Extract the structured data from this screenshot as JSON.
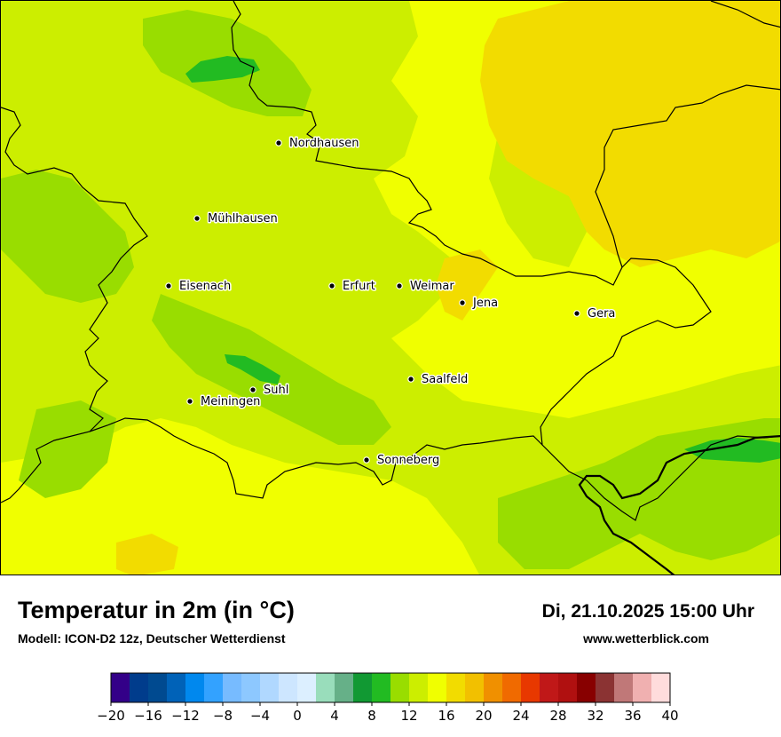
{
  "map": {
    "cities": [
      {
        "id": "nordhausen",
        "name": "Nordhausen"
      },
      {
        "id": "muehlhausen",
        "name": "Mühlhausen"
      },
      {
        "id": "eisenach",
        "name": "Eisenach"
      },
      {
        "id": "erfurt",
        "name": "Erfurt"
      },
      {
        "id": "weimar",
        "name": "Weimar"
      },
      {
        "id": "jena",
        "name": "Jena"
      },
      {
        "id": "gera",
        "name": "Gera"
      },
      {
        "id": "saalfeld",
        "name": "Saalfeld"
      },
      {
        "id": "suhl",
        "name": "Suhl"
      },
      {
        "id": "meiningen",
        "name": "Meiningen"
      },
      {
        "id": "sonneberg",
        "name": "Sonneberg"
      }
    ],
    "colors": {
      "t10_12": "#99dd00",
      "t12_14": "#ccee00",
      "t14_16": "#f0ff00",
      "t16_18": "#f2dc00",
      "t8_10": "#22bb22",
      "border": "#000000"
    }
  },
  "header": {
    "title": "Temperatur in 2m (in °C)",
    "model": "Modell: ICON-D2 12z, Deutscher Wetterdienst",
    "datetime": "Di, 21.10.2025 15:00 Uhr",
    "website": "www.wetterblick.com"
  },
  "legend": {
    "min": -20,
    "max": 40,
    "step": 2,
    "tick_labels": [
      "−20",
      "−16",
      "−12",
      "−8",
      "−4",
      "0",
      "4",
      "8",
      "12",
      "16",
      "20",
      "24",
      "28",
      "32",
      "36",
      "40"
    ],
    "colors": [
      "#330088",
      "#003c8c",
      "#004a90",
      "#0062b8",
      "#0088ee",
      "#33a2ff",
      "#77bbff",
      "#8dc8ff",
      "#b0d8ff",
      "#cde6ff",
      "#dcefff",
      "#99ddbb",
      "#66b088",
      "#119933",
      "#22bb22",
      "#99dd00",
      "#ccee00",
      "#f0ff00",
      "#f2dc00",
      "#f2c000",
      "#f09000",
      "#f06a00",
      "#e83800",
      "#c01818",
      "#b01010",
      "#880000",
      "#8b3333",
      "#c07878",
      "#f0b0b0",
      "#ffdcdc"
    ]
  }
}
